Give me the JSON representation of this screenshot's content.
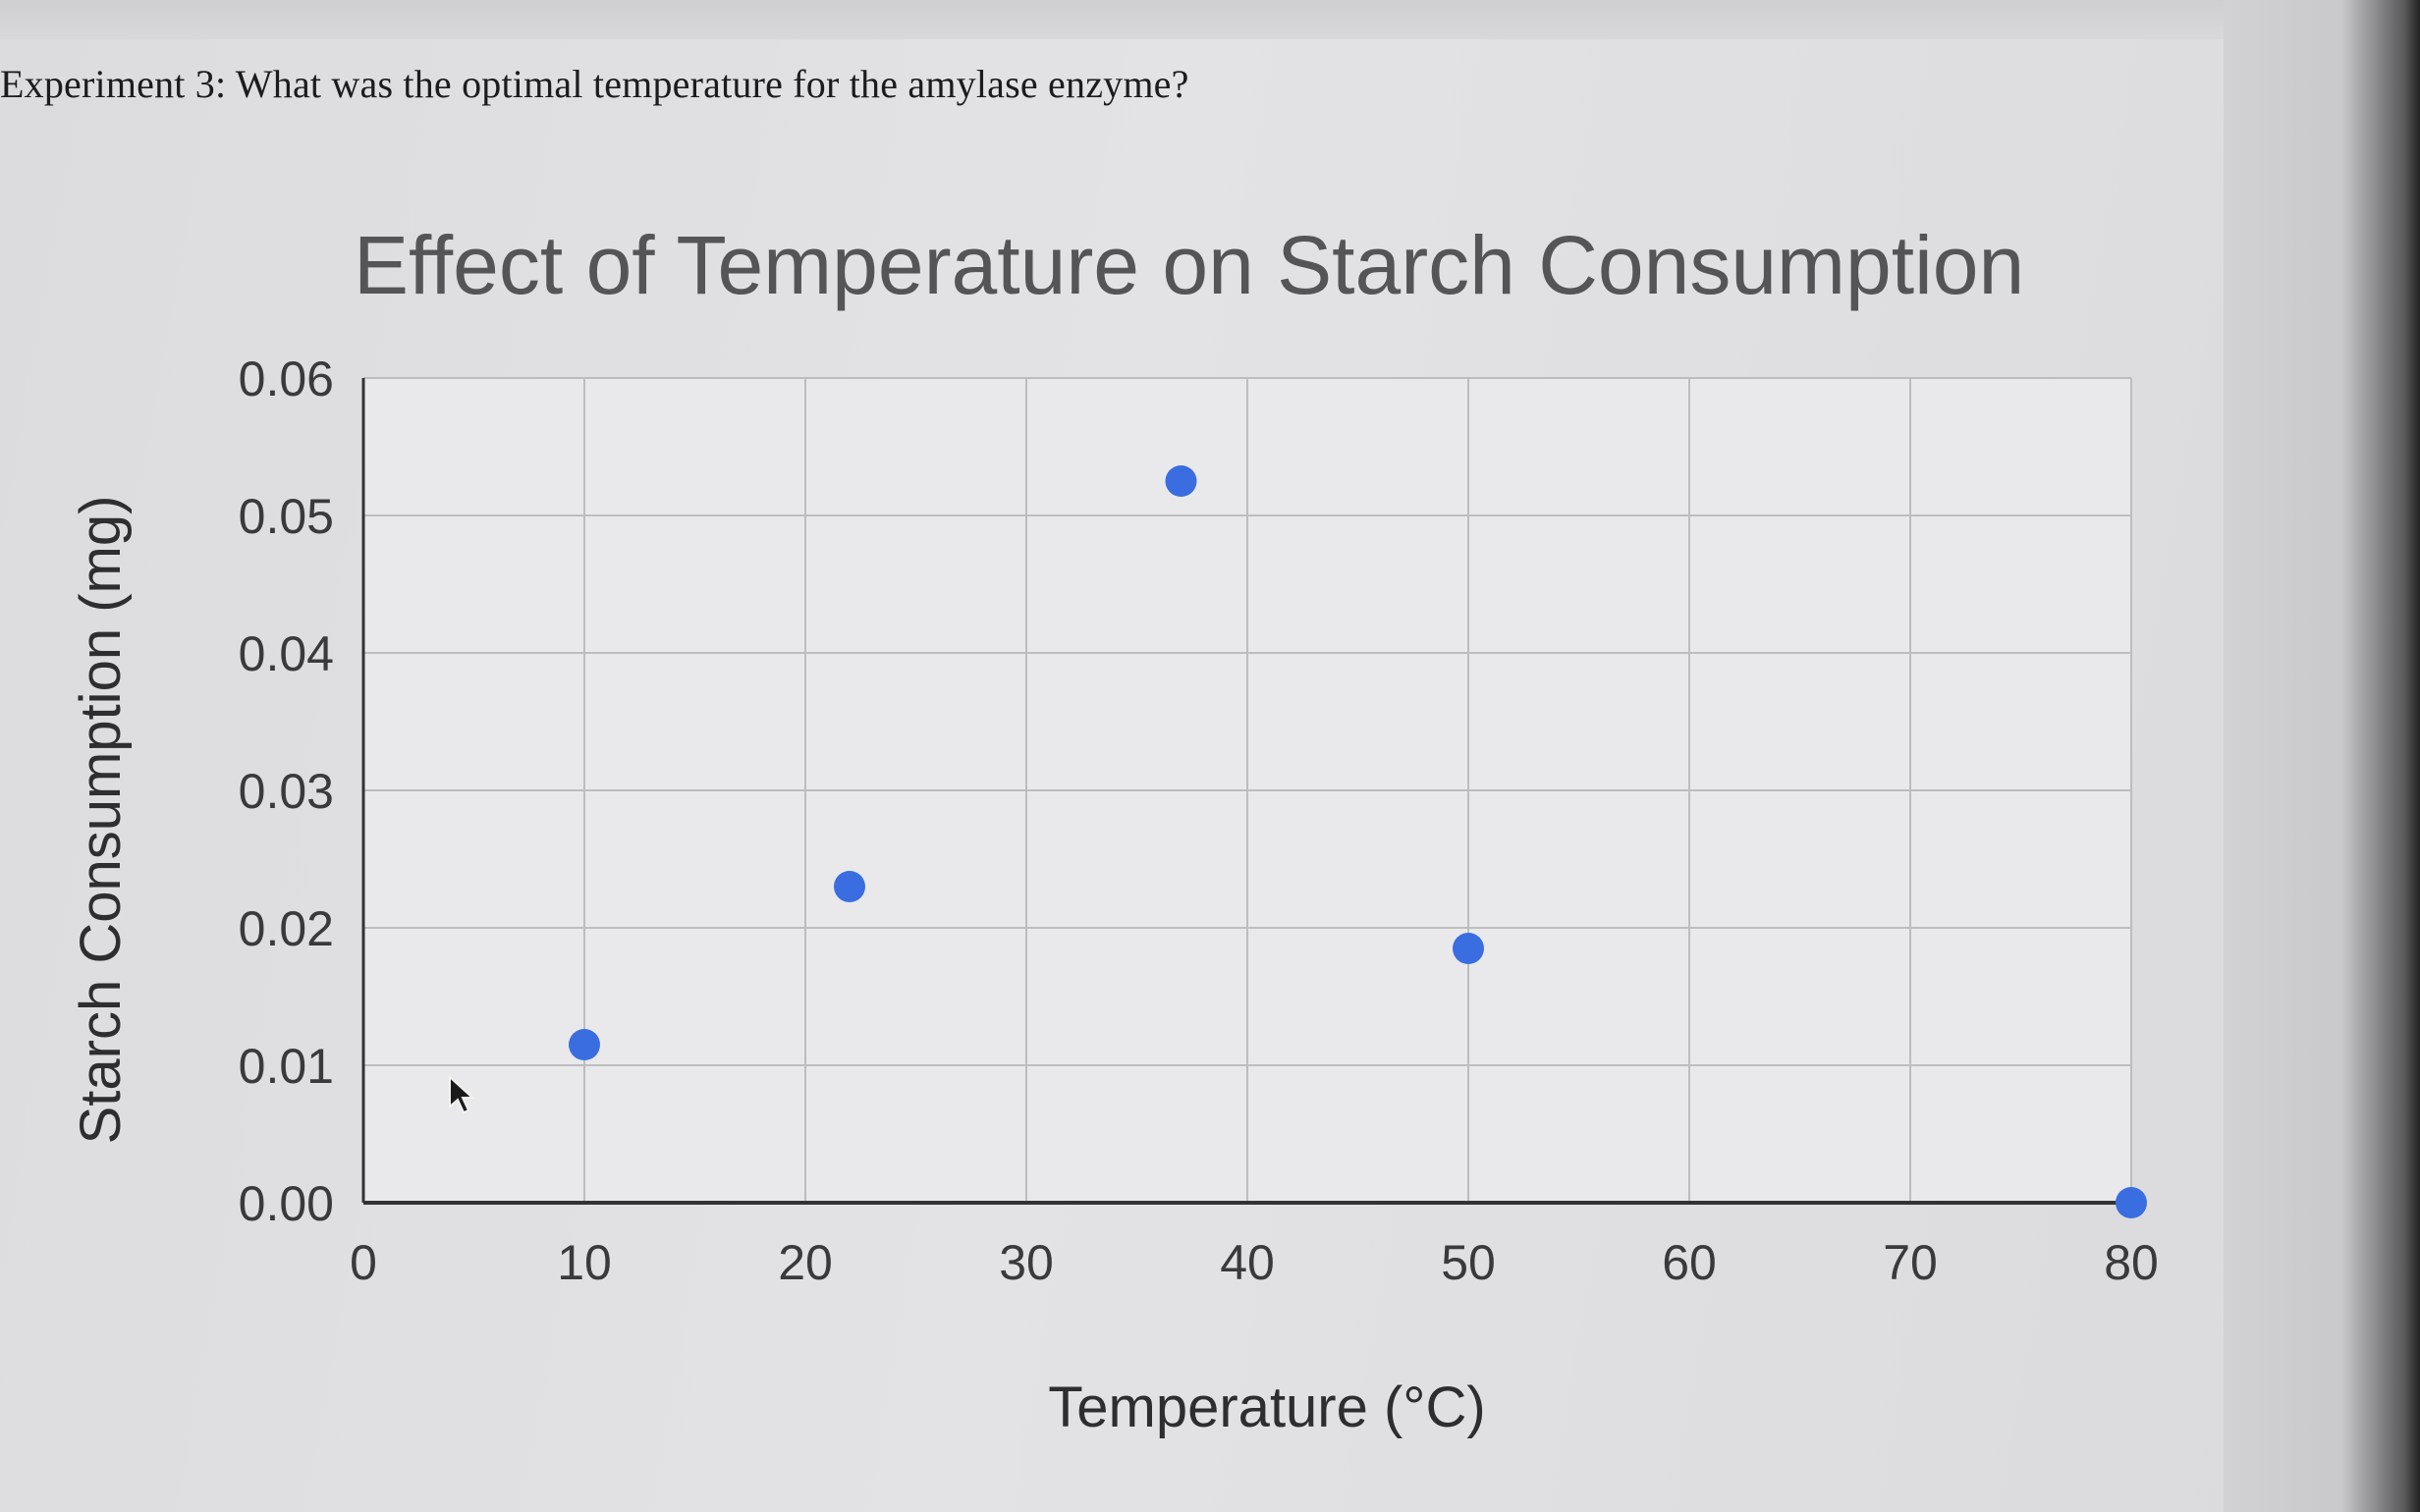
{
  "question": "Experiment 3: What was the optimal temperature for the amylase enzyme?",
  "chart_data": {
    "type": "scatter",
    "title": "Effect of Temperature on Starch Consumption",
    "xlabel": "Temperature (°C)",
    "ylabel": "Starch Consumption (mg)",
    "xlim": [
      0,
      80
    ],
    "ylim": [
      0,
      0.06
    ],
    "x_ticks": [
      "0",
      "10",
      "20",
      "30",
      "40",
      "50",
      "60",
      "70",
      "80"
    ],
    "y_ticks": [
      "0.00",
      "0.01",
      "0.02",
      "0.03",
      "0.04",
      "0.05",
      "0.06"
    ],
    "grid": true,
    "legend": "none",
    "point_color": "#3a6ee0",
    "points": [
      {
        "x": 10,
        "y": 0.0115
      },
      {
        "x": 22,
        "y": 0.023
      },
      {
        "x": 37,
        "y": 0.0525
      },
      {
        "x": 50,
        "y": 0.0185
      },
      {
        "x": 80,
        "y": 0.0
      }
    ]
  }
}
